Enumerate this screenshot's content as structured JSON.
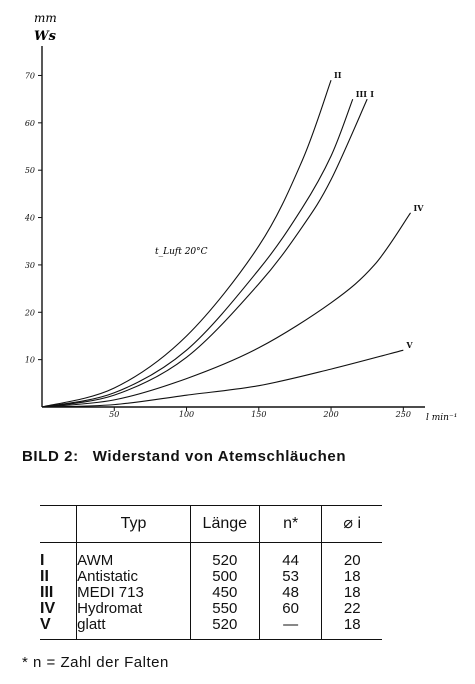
{
  "chart_data": {
    "type": "line",
    "title": "",
    "y_unit_top": "mm",
    "y_unit_bottom": "Ws",
    "x_unit": "l min⁻¹",
    "annotation": "t_Luft 20°C",
    "xlim": [
      0,
      265
    ],
    "ylim": [
      0,
      72
    ],
    "x_ticks": [
      50,
      100,
      150,
      200,
      250
    ],
    "y_ticks": [
      10,
      20,
      30,
      40,
      50,
      60,
      70
    ],
    "grid": false,
    "series": [
      {
        "name": "I",
        "x": [
          0,
          50,
          100,
          150,
          180,
          200,
          225
        ],
        "y": [
          0,
          2.5,
          10.5,
          26,
          38,
          48,
          65
        ]
      },
      {
        "name": "II",
        "x": [
          0,
          50,
          100,
          150,
          180,
          200
        ],
        "y": [
          0,
          4,
          15,
          34,
          52,
          69
        ]
      },
      {
        "name": "III",
        "x": [
          0,
          50,
          100,
          150,
          180,
          200,
          215
        ],
        "y": [
          0,
          3,
          12,
          29,
          42,
          53,
          65
        ]
      },
      {
        "name": "IV",
        "x": [
          0,
          50,
          100,
          150,
          200,
          230,
          255
        ],
        "y": [
          0,
          1.5,
          6,
          12.5,
          22,
          30,
          41
        ]
      },
      {
        "name": "V",
        "x": [
          0,
          50,
          100,
          150,
          200,
          250
        ],
        "y": [
          0,
          0.5,
          2.5,
          4.5,
          8,
          12
        ]
      }
    ]
  },
  "caption": {
    "label": "BILD 2:",
    "title": "Widerstand von Atemschläuchen"
  },
  "table": {
    "headers": {
      "roman": "",
      "typ": "Typ",
      "laenge": "Länge",
      "n": "n*",
      "d": "⌀ i"
    },
    "rows": [
      {
        "roman": "I",
        "typ": "AWM",
        "laenge": "520",
        "n": "44",
        "d": "20"
      },
      {
        "roman": "II",
        "typ": "Antistatic",
        "laenge": "500",
        "n": "53",
        "d": "18"
      },
      {
        "roman": "III",
        "typ": "MEDI 713",
        "laenge": "450",
        "n": "48",
        "d": "18"
      },
      {
        "roman": "IV",
        "typ": "Hydromat",
        "laenge": "550",
        "n": "60",
        "d": "22"
      },
      {
        "roman": "V",
        "typ": "glatt",
        "laenge": "520",
        "n": "—",
        "d": "18"
      }
    ]
  },
  "footnote": "* n = Zahl der Falten",
  "colors": {
    "ink": "#111111",
    "paper": "#ffffff"
  }
}
